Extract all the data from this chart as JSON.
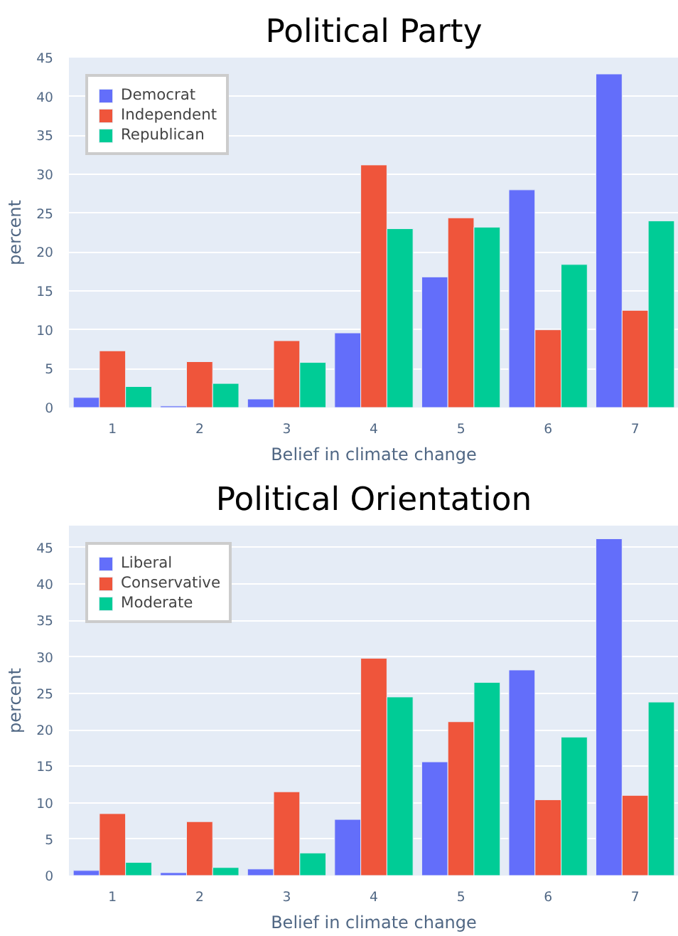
{
  "chart_data": [
    {
      "type": "bar",
      "title": "Political Party",
      "xlabel": "Belief in climate change",
      "ylabel": "percent",
      "x": [
        1,
        2,
        3,
        4,
        5,
        6,
        7
      ],
      "xlim": [
        0.5,
        7.5
      ],
      "xticks": [
        1,
        2,
        3,
        4,
        5,
        6,
        7
      ],
      "ylim": [
        0,
        45
      ],
      "yticks": [
        0,
        5,
        10,
        15,
        20,
        25,
        30,
        35,
        40,
        45
      ],
      "grid": "y",
      "legend": "top left",
      "series": [
        {
          "name": "Democrat",
          "color": "#636efa",
          "values": [
            1.3,
            0.2,
            1.1,
            9.6,
            16.8,
            28,
            42.9
          ]
        },
        {
          "name": "Independent",
          "color": "#ef553b",
          "values": [
            7.3,
            5.9,
            8.6,
            31.2,
            24.4,
            10,
            12.5
          ]
        },
        {
          "name": "Republican",
          "color": "#00cc96",
          "values": [
            2.7,
            3.1,
            5.8,
            23,
            23.2,
            18.4,
            24
          ]
        }
      ]
    },
    {
      "type": "bar",
      "title": "Political Orientation",
      "xlabel": "Belief in climate change",
      "ylabel": "percent",
      "x": [
        1,
        2,
        3,
        4,
        5,
        6,
        7
      ],
      "xlim": [
        0.5,
        7.5
      ],
      "xticks": [
        1,
        2,
        3,
        4,
        5,
        6,
        7
      ],
      "ylim": [
        0,
        48
      ],
      "yticks": [
        0,
        5,
        10,
        15,
        20,
        25,
        30,
        35,
        40,
        45
      ],
      "grid": "y",
      "legend": "top left",
      "series": [
        {
          "name": "Liberal",
          "color": "#636efa",
          "values": [
            0.7,
            0.4,
            0.9,
            7.7,
            15.6,
            28.2,
            46.2
          ]
        },
        {
          "name": "Conservative",
          "color": "#ef553b",
          "values": [
            8.5,
            7.4,
            11.5,
            29.8,
            21.1,
            10.4,
            11
          ]
        },
        {
          "name": "Moderate",
          "color": "#00cc96",
          "values": [
            1.8,
            1.1,
            3.1,
            24.5,
            26.5,
            19,
            23.8
          ]
        }
      ]
    }
  ]
}
